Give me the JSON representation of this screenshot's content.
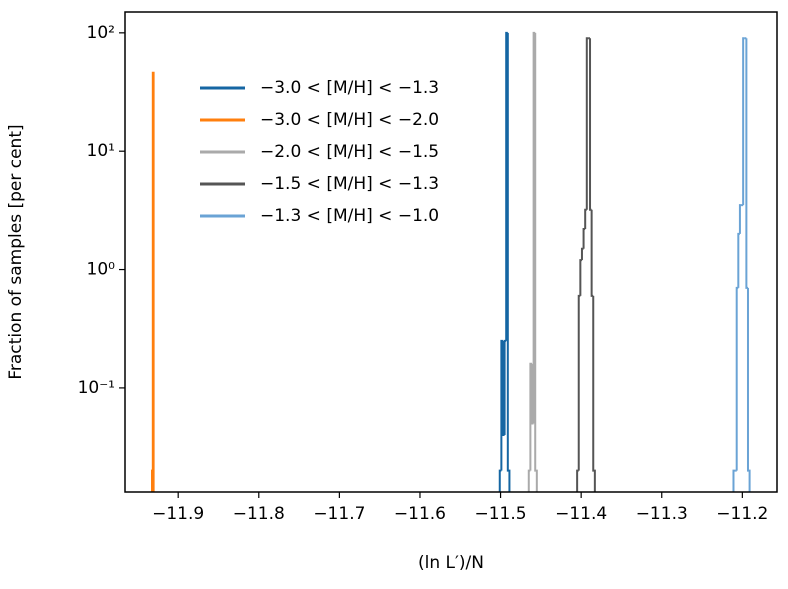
{
  "chart_data": {
    "type": "histogram-step",
    "x_label": "(ln L′)/N",
    "y_label": "Fraction of samples [per cent]",
    "xlim": [
      -11.966,
      -11.157
    ],
    "ylim": [
      0.0132,
      150
    ],
    "log_y": true,
    "legend": "upper left",
    "xticks": [
      {
        "value": -11.9,
        "label": "−11.9"
      },
      {
        "value": -11.8,
        "label": "−11.8"
      },
      {
        "value": -11.7,
        "label": "−11.7"
      },
      {
        "value": -11.6,
        "label": "−11.6"
      },
      {
        "value": -11.5,
        "label": "−11.5"
      },
      {
        "value": -11.4,
        "label": "−11.4"
      },
      {
        "value": -11.3,
        "label": "−11.3"
      },
      {
        "value": -11.2,
        "label": "−11.2"
      }
    ],
    "yticks": [
      {
        "value": 0.1,
        "label": "10⁻¹"
      },
      {
        "value": 1,
        "label": "10⁰"
      },
      {
        "value": 10,
        "label": "10¹"
      },
      {
        "value": 100,
        "label": "10²"
      }
    ],
    "series": [
      {
        "name": "−3.0 < [M/H] < −1.3",
        "color": "#1566a3",
        "bins": [
          -11.501,
          -11.499,
          -11.497,
          -11.495,
          -11.493,
          -11.491,
          -11.489
        ],
        "values": [
          0.02,
          0.25,
          0.04,
          0.25,
          100,
          0.02
        ]
      },
      {
        "name": "−3.0 < [M/H] < −2.0",
        "color": "#ff7f0e",
        "bins": [
          -11.9325,
          -11.9315,
          -11.9305
        ],
        "values": [
          0.02,
          46
        ]
      },
      {
        "name": "−2.0 < [M/H] < −1.5",
        "color": "#aaaaaa",
        "bins": [
          -11.465,
          -11.463,
          -11.461,
          -11.459,
          -11.457,
          -11.455
        ],
        "values": [
          0.02,
          0.16,
          0.05,
          100,
          0.02
        ]
      },
      {
        "name": "−1.5 < [M/H] < −1.3",
        "color": "#555555",
        "bins": [
          -11.405,
          -11.403,
          -11.401,
          -11.399,
          -11.397,
          -11.395,
          -11.393,
          -11.391,
          -11.389,
          -11.387,
          -11.385,
          -11.383
        ],
        "values": [
          0.02,
          0.6,
          1.2,
          1.5,
          2.2,
          3.2,
          90,
          90,
          3.2,
          0.6,
          0.02
        ]
      },
      {
        "name": "−1.3 < [M/H] < −1.0",
        "color": "#6aa3d5",
        "bins": [
          -11.211,
          -11.209,
          -11.207,
          -11.205,
          -11.203,
          -11.201,
          -11.199,
          -11.197,
          -11.195,
          -11.193,
          -11.191
        ],
        "values": [
          0.02,
          0.02,
          0.7,
          2.0,
          3.5,
          3.5,
          90,
          90,
          0.7,
          0.02
        ]
      }
    ]
  }
}
